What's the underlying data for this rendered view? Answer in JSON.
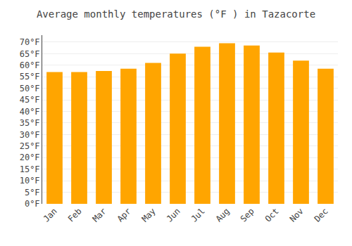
{
  "chart_data": {
    "type": "bar",
    "title": "Average monthly temperatures (°F ) in Tazacorte",
    "categories": [
      "Jan",
      "Feb",
      "Mar",
      "Apr",
      "May",
      "Jun",
      "Jul",
      "Aug",
      "Sep",
      "Oct",
      "Nov",
      "Dec"
    ],
    "values": [
      57,
      57,
      57.5,
      58.5,
      61,
      65,
      68,
      69.5,
      68.5,
      65.5,
      62,
      58.5
    ],
    "color": "#FFA500",
    "ylim": [
      0,
      73
    ],
    "yticks": [
      {
        "value": 0,
        "label": "0°F"
      },
      {
        "value": 5,
        "label": "5°F"
      },
      {
        "value": 10,
        "label": "10°F"
      },
      {
        "value": 15,
        "label": "15°F"
      },
      {
        "value": 20,
        "label": "20°F"
      },
      {
        "value": 25,
        "label": "25°F"
      },
      {
        "value": 30,
        "label": "30°F"
      },
      {
        "value": 35,
        "label": "35°F"
      },
      {
        "value": 40,
        "label": "40°F"
      },
      {
        "value": 45,
        "label": "45°F"
      },
      {
        "value": 50,
        "label": "50°F"
      },
      {
        "value": 55,
        "label": "55°F"
      },
      {
        "value": 60,
        "label": "60°F"
      },
      {
        "value": 65,
        "label": "65°F"
      },
      {
        "value": 70,
        "label": "70°F"
      }
    ],
    "grid": true
  }
}
